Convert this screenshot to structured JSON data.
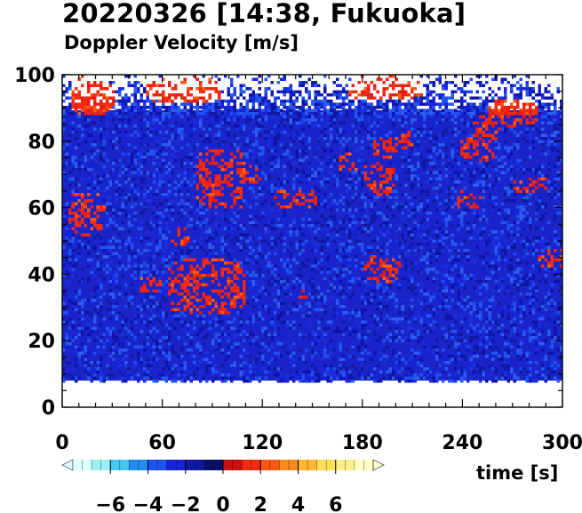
{
  "chart_data": {
    "type": "heatmap",
    "title": "20220326 [14:38, Fukuoka]",
    "subtitle": "Doppler Velocity [m/s]",
    "xlabel": "time [s]",
    "ylabel": "",
    "xlim": [
      0,
      300
    ],
    "ylim": [
      0,
      100
    ],
    "x_ticks": [
      0,
      60,
      120,
      180,
      240,
      300
    ],
    "y_ticks": [
      0,
      20,
      40,
      60,
      80,
      100
    ],
    "data_ylim": [
      8,
      100
    ],
    "colorbar": {
      "range": [
        -8,
        8
      ],
      "ticks": [
        -6,
        -4,
        -2,
        0,
        2,
        4,
        6
      ],
      "tick_labels": [
        "−6",
        "−4",
        "−2",
        "0",
        "2",
        "4",
        "6"
      ],
      "colors": [
        "#e0ffff",
        "#9cf0f4",
        "#46c8ee",
        "#1f8cf0",
        "#1f50f0",
        "#1a22d8",
        "#101aa0",
        "#0a0f66",
        "#c81010",
        "#f22a10",
        "#f85a14",
        "#fb8a1e",
        "#fdb832",
        "#fde05a",
        "#ffef8c",
        "#ffffc8"
      ]
    },
    "positive_regions": [
      {
        "t": [
          2,
          25
        ],
        "h": [
          52,
          65
        ]
      },
      {
        "t": [
          43,
          58
        ],
        "h": [
          35,
          40
        ]
      },
      {
        "t": [
          62,
          110
        ],
        "h": [
          28,
          45
        ]
      },
      {
        "t": [
          80,
          110
        ],
        "h": [
          60,
          78
        ]
      },
      {
        "t": [
          100,
          118
        ],
        "h": [
          67,
          73
        ]
      },
      {
        "t": [
          65,
          75
        ],
        "h": [
          48,
          55
        ]
      },
      {
        "t": [
          125,
          152
        ],
        "h": [
          60,
          66
        ]
      },
      {
        "t": [
          140,
          146
        ],
        "h": [
          33,
          36
        ]
      },
      {
        "t": [
          165,
          176
        ],
        "h": [
          71,
          77
        ]
      },
      {
        "t": [
          180,
          202
        ],
        "h": [
          38,
          46
        ]
      },
      {
        "t": [
          180,
          198
        ],
        "h": [
          64,
          74
        ]
      },
      {
        "t": [
          185,
          203
        ],
        "h": [
          75,
          82
        ]
      },
      {
        "t": [
          198,
          210
        ],
        "h": [
          78,
          84
        ]
      },
      {
        "t": [
          235,
          250
        ],
        "h": [
          60,
          66
        ]
      },
      {
        "t": [
          238,
          258
        ],
        "h": [
          74,
          82
        ]
      },
      {
        "t": [
          245,
          262
        ],
        "h": [
          80,
          88
        ]
      },
      {
        "t": [
          270,
          290
        ],
        "h": [
          65,
          70
        ]
      },
      {
        "t": [
          285,
          300
        ],
        "h": [
          42,
          48
        ]
      },
      {
        "t": [
          5,
          30
        ],
        "h": [
          88,
          100
        ]
      },
      {
        "t": [
          50,
          95
        ],
        "h": [
          92,
          100
        ]
      },
      {
        "t": [
          170,
          215
        ],
        "h": [
          93,
          100
        ]
      },
      {
        "t": [
          255,
          285
        ],
        "h": [
          85,
          93
        ]
      }
    ],
    "sparse_above": 88,
    "grid": false,
    "legend": "colorbar-bottom"
  }
}
